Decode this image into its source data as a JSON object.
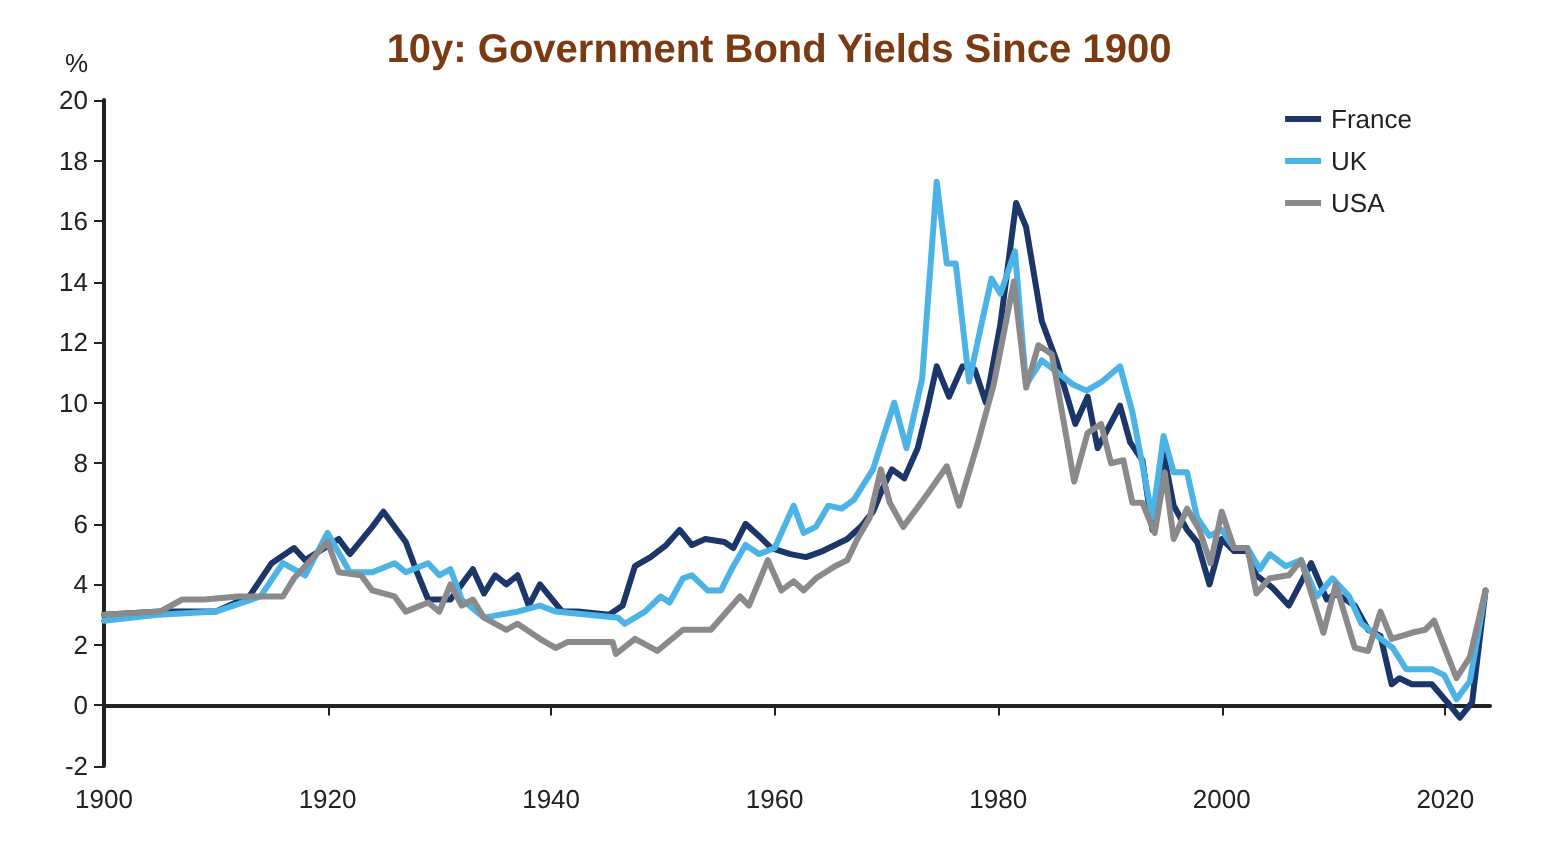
{
  "chart_data": {
    "type": "line",
    "title": "10y: Government Bond Yields Since 1900",
    "ylabel": "%",
    "xlim": [
      1900,
      2024
    ],
    "xticks": [
      1900,
      1920,
      1940,
      1960,
      1980,
      2000,
      2020
    ],
    "ylim": [
      -2,
      20
    ],
    "yticks": [
      -2,
      0,
      2,
      4,
      6,
      8,
      10,
      12,
      14,
      16,
      18,
      20
    ],
    "legend": "top right",
    "marker": "none",
    "line_style": "solid",
    "series": [
      {
        "name": "France",
        "color": "#1b3668",
        "x": [
          1900,
          1905,
          1910,
          1913,
          1915,
          1917,
          1918,
          1921,
          1922,
          1924,
          1925,
          1927,
          1928,
          1929,
          1931,
          1932,
          1933,
          1934,
          1935,
          1936,
          1937,
          1938,
          1939,
          1941,
          1942.4,
          1945.2,
          1946.4,
          1947.5,
          1948.9,
          1950.3,
          1951.5,
          1952.6,
          1953.8,
          1955.5,
          1956.3,
          1957.4,
          1958.6,
          1959.7,
          1961.4,
          1962.8,
          1964.3,
          1965.4,
          1966.5,
          1967.7,
          1968.8,
          1969.7,
          1970.5,
          1971.6,
          1972.8,
          1973.6,
          1974.5,
          1975.6,
          1976.8,
          1977.9,
          1978.9,
          1980.2,
          1981.6,
          1982.5,
          1983.9,
          1985.2,
          1986.9,
          1988,
          1988.9,
          1990.9,
          1991.8,
          1992.9,
          1993.8,
          1994.8,
          1995.7,
          1996.9,
          1997.8,
          1998.9,
          2000,
          2001.1,
          2002.3,
          2003.1,
          2004.5,
          2006,
          2008,
          2009.4,
          2010.2,
          2011.9,
          2013.1,
          2014.2,
          2015.2,
          2015.9,
          2017,
          2018.8,
          2020.2,
          2021.3,
          2022.4,
          2023.6
        ],
        "values": [
          3.0,
          3.1,
          3.1,
          3.6,
          4.7,
          5.2,
          4.8,
          5.5,
          5.0,
          5.9,
          6.4,
          5.4,
          4.4,
          3.5,
          3.5,
          4.0,
          4.5,
          3.7,
          4.3,
          4.0,
          4.3,
          3.3,
          4.0,
          3.1,
          3.1,
          3.0,
          3.3,
          4.6,
          4.9,
          5.3,
          5.8,
          5.3,
          5.5,
          5.4,
          5.2,
          6.0,
          5.6,
          5.2,
          5.0,
          4.9,
          5.1,
          5.3,
          5.5,
          5.9,
          6.4,
          7.2,
          7.8,
          7.5,
          8.5,
          9.7,
          11.2,
          10.2,
          11.2,
          11.1,
          10.0,
          12.6,
          16.6,
          15.8,
          12.7,
          11.4,
          9.3,
          10.2,
          8.5,
          9.9,
          8.7,
          8.1,
          5.8,
          8.3,
          6.6,
          5.8,
          5.4,
          4.0,
          5.5,
          5.1,
          5.1,
          4.3,
          3.9,
          3.3,
          4.7,
          3.5,
          3.7,
          3.3,
          2.5,
          2.3,
          0.7,
          0.9,
          0.7,
          0.7,
          0.1,
          -0.4,
          0.1,
          3.8
        ]
      },
      {
        "name": "UK",
        "color": "#4cb3e6",
        "x": [
          1900,
          1905,
          1910,
          1914,
          1916,
          1918,
          1920,
          1922,
          1924,
          1926,
          1927,
          1929,
          1930,
          1931,
          1932,
          1934,
          1937,
          1939,
          1940.4,
          1946,
          1946.6,
          1948.4,
          1949.8,
          1950.6,
          1951.8,
          1952.6,
          1954,
          1955.2,
          1956.3,
          1957.4,
          1958.6,
          1960,
          1961.7,
          1962.6,
          1963.7,
          1964.8,
          1966,
          1967.1,
          1968.8,
          1970.7,
          1971.8,
          1973.2,
          1974.5,
          1975.4,
          1976.2,
          1977.4,
          1978.5,
          1979.4,
          1980.2,
          1981.5,
          1982.5,
          1983.9,
          1985.3,
          1986.7,
          1987.9,
          1989.3,
          1990.9,
          1992,
          1993.8,
          1994.8,
          1995.7,
          1996.9,
          1997.8,
          1998.9,
          2000,
          2001.1,
          2002.3,
          2003.4,
          2004.3,
          2005.7,
          2007.1,
          2008.5,
          2009.9,
          2011.4,
          2012.5,
          2013.9,
          2015.3,
          2016.5,
          2018.8,
          2019.9,
          2021,
          2022.2,
          2023.6
        ],
        "values": [
          2.8,
          3.0,
          3.1,
          3.6,
          4.7,
          4.3,
          5.7,
          4.4,
          4.4,
          4.7,
          4.4,
          4.7,
          4.3,
          4.5,
          3.5,
          2.9,
          3.1,
          3.3,
          3.1,
          2.9,
          2.7,
          3.1,
          3.6,
          3.4,
          4.2,
          4.3,
          3.8,
          3.8,
          4.6,
          5.3,
          5.0,
          5.2,
          6.6,
          5.7,
          5.9,
          6.6,
          6.5,
          6.8,
          7.8,
          10.0,
          8.5,
          10.8,
          17.3,
          14.6,
          14.6,
          10.7,
          12.6,
          14.1,
          13.6,
          15.0,
          10.6,
          11.4,
          11.0,
          10.6,
          10.4,
          10.7,
          11.2,
          9.7,
          6.2,
          8.9,
          7.7,
          7.7,
          6.2,
          5.6,
          5.8,
          5.2,
          5.2,
          4.5,
          5.0,
          4.6,
          4.8,
          3.6,
          4.2,
          3.6,
          2.7,
          2.3,
          1.9,
          1.2,
          1.2,
          1.0,
          0.2,
          0.8,
          3.8
        ]
      },
      {
        "name": "USA",
        "color": "#8a8a8c",
        "x": [
          1900,
          1905,
          1907,
          1909,
          1912,
          1916,
          1917,
          1920,
          1921,
          1923,
          1924,
          1926,
          1927,
          1929,
          1930,
          1931,
          1932,
          1933,
          1934,
          1936,
          1937,
          1939,
          1940.4,
          1941.5,
          1945.5,
          1945.8,
          1947.5,
          1949.5,
          1951.8,
          1954.3,
          1956.9,
          1957.7,
          1959.4,
          1960.6,
          1961.7,
          1962.6,
          1963.7,
          1965.4,
          1966.5,
          1967.4,
          1968.5,
          1969.5,
          1970.3,
          1971.5,
          1973.7,
          1975.4,
          1976.5,
          1978.2,
          1979.6,
          1981.4,
          1982.5,
          1983.6,
          1984.8,
          1986.8,
          1988,
          1989.2,
          1990.1,
          1991.2,
          1992,
          1992.9,
          1994,
          1994.9,
          1995.7,
          1996.9,
          1998,
          1999,
          2000,
          2001.1,
          2002.3,
          2003.1,
          2004.3,
          2006,
          2007.1,
          2009.1,
          2010.2,
          2011.9,
          2013.1,
          2014.2,
          2015.2,
          2017,
          2018.2,
          2019,
          2021,
          2022.2,
          2023.6
        ],
        "values": [
          3.0,
          3.1,
          3.5,
          3.5,
          3.6,
          3.6,
          4.2,
          5.4,
          4.4,
          4.3,
          3.8,
          3.6,
          3.1,
          3.4,
          3.1,
          4.0,
          3.3,
          3.5,
          2.9,
          2.5,
          2.7,
          2.2,
          1.9,
          2.1,
          2.1,
          1.7,
          2.2,
          1.8,
          2.5,
          2.5,
          3.6,
          3.3,
          4.8,
          3.8,
          4.1,
          3.8,
          4.2,
          4.6,
          4.8,
          5.5,
          6.2,
          7.8,
          6.7,
          5.9,
          7.0,
          7.9,
          6.6,
          8.7,
          10.6,
          14.0,
          10.5,
          11.9,
          11.6,
          7.4,
          9.0,
          9.3,
          8.0,
          8.1,
          6.7,
          6.7,
          5.7,
          7.7,
          5.5,
          6.5,
          5.8,
          4.7,
          6.4,
          5.2,
          5.2,
          3.7,
          4.2,
          4.3,
          4.8,
          2.4,
          4.0,
          1.9,
          1.8,
          3.1,
          2.2,
          2.4,
          2.5,
          2.8,
          0.9,
          1.6,
          3.8
        ]
      }
    ]
  }
}
